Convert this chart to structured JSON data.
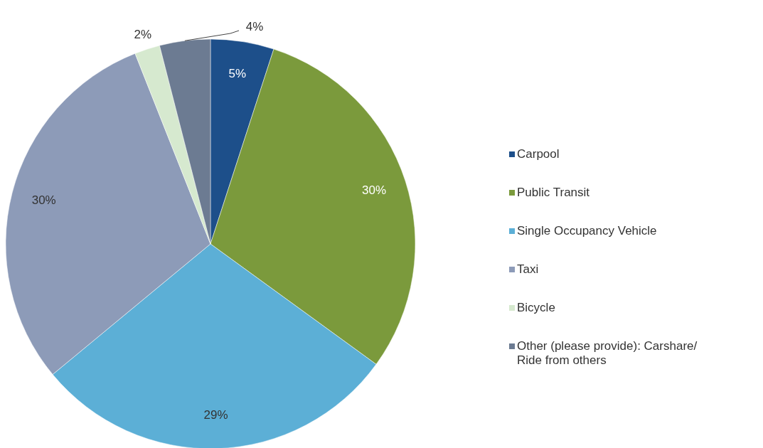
{
  "chart_data": {
    "type": "pie",
    "categories": [
      "Carpool",
      "Public Transit",
      "Single Occupancy Vehicle",
      "Taxi",
      "Bicycle",
      "Other (please provide): Carshare/ Ride from others"
    ],
    "values": [
      5,
      30,
      29,
      30,
      2,
      4
    ],
    "colors": [
      "#1d4f8a",
      "#7b9a3c",
      "#5cafd6",
      "#8d9bb8",
      "#d6e9cf",
      "#6c7b92"
    ],
    "value_labels": [
      "5%",
      "30%",
      "29%",
      "30%",
      "2%",
      "4%"
    ],
    "legend": "right"
  }
}
